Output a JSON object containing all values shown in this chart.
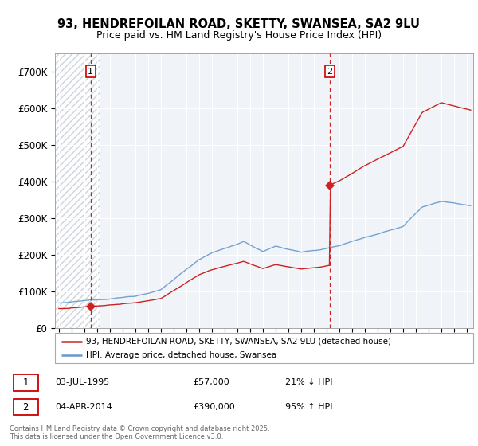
{
  "title_line1": "93, HENDREFOILAN ROAD, SKETTY, SWANSEA, SA2 9LU",
  "title_line2": "Price paid vs. HM Land Registry's House Price Index (HPI)",
  "ylim": [
    0,
    750000
  ],
  "yticks": [
    0,
    100000,
    200000,
    300000,
    400000,
    500000,
    600000,
    700000
  ],
  "ytick_labels": [
    "£0",
    "£100K",
    "£200K",
    "£300K",
    "£400K",
    "£500K",
    "£600K",
    "£700K"
  ],
  "xlim_start": 1992.7,
  "xlim_end": 2025.5,
  "transaction1_year": 1995.5,
  "transaction1_price": 57000,
  "transaction2_year": 2014.25,
  "transaction2_price": 390000,
  "legend_line1": "93, HENDREFOILAN ROAD, SKETTY, SWANSEA, SA2 9LU (detached house)",
  "legend_line2": "HPI: Average price, detached house, Swansea",
  "footer": "Contains HM Land Registry data © Crown copyright and database right 2025.\nThis data is licensed under the Open Government Licence v3.0.",
  "line_property_color": "#cc2222",
  "line_hpi_color": "#6699cc",
  "plot_bg_color": "#f0f4f8",
  "hatch_color": "#c8d0d8"
}
